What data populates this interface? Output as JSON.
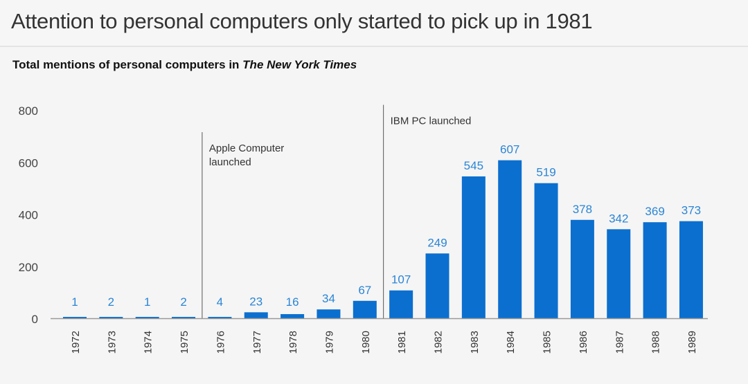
{
  "header": {
    "title": "Attention to personal computers only started to pick up in 1981"
  },
  "chart_data": {
    "type": "bar",
    "title": "Total mentions of personal computers in The New York Times",
    "title_plain": "Total mentions of personal computers in ",
    "title_italic": "The New York Times",
    "categories": [
      "1972",
      "1973",
      "1974",
      "1975",
      "1976",
      "1977",
      "1978",
      "1979",
      "1980",
      "1981",
      "1982",
      "1983",
      "1984",
      "1985",
      "1986",
      "1987",
      "1988",
      "1989"
    ],
    "values": [
      1,
      2,
      1,
      2,
      4,
      23,
      16,
      34,
      67,
      107,
      249,
      545,
      607,
      519,
      378,
      342,
      369,
      373
    ],
    "ylim": [
      0,
      800
    ],
    "yticks": [
      0,
      200,
      400,
      600,
      800
    ],
    "grid": false,
    "bar_color": "#0b6fcf",
    "label_color": "#2a85d6",
    "annotations": [
      {
        "category": "1976",
        "lines": [
          "Apple Computer",
          "launched"
        ],
        "line_top": 715
      },
      {
        "category": "1981",
        "lines": [
          "IBM PC launched"
        ],
        "line_top": 820
      }
    ]
  }
}
